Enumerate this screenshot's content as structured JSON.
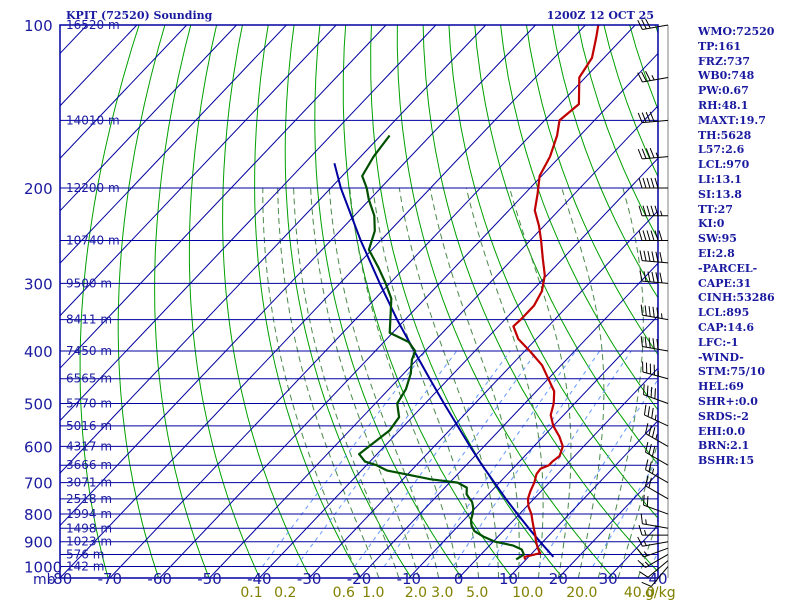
{
  "header": {
    "station": "KPIT (72520) Sounding",
    "time": "1200Z 12 OCT 25"
  },
  "indices": [
    "WMO:72520",
    "TP:161",
    "FRZ:737",
    "WB0:748",
    "PW:0.67",
    "RH:48.1",
    "MAXT:19.7",
    "TH:5628",
    "L57:2.6",
    "LCL:970",
    "LI:13.1",
    "SI:13.8",
    "TT:27",
    "KI:0",
    "SW:95",
    "EI:2.8",
    "-PARCEL-",
    "CAPE:31",
    "CINH:53286",
    "LCL:895",
    "CAP:14.6",
    "LFC:-1",
    "-WIND-",
    "STM:75/10",
    "HEL:69",
    "SHR+:0.0",
    "SRDS:-2",
    "EHI:0.0",
    "BRN:2.1",
    "BSHR:15"
  ],
  "colors": {
    "grid": "#0000a0",
    "dry_adiabat": "#00a000",
    "moist_adiabat": "#4a8a4a",
    "mixing_ratio": "#6699ff",
    "temperature": "#c00000",
    "dewpoint": "#005000",
    "parcel": "#0000a0",
    "label": "#1a1aa0",
    "mix_label": "#808000",
    "wind": "#000000"
  },
  "chart_data": {
    "type": "skew-t",
    "pressure_axis": {
      "unit_label": "mb",
      "ticks": [
        "100",
        "200",
        "300",
        "400",
        "500",
        "600",
        "700",
        "800",
        "900",
        "1000"
      ],
      "ylim": [
        1050,
        100
      ]
    },
    "temperature_axis": {
      "ticks": [
        "-80",
        "-70",
        "-60",
        "-50",
        "-40",
        "-30",
        "-20",
        "-10",
        "0",
        "10",
        "20",
        "30",
        "40"
      ],
      "xlim": [
        -80,
        40
      ]
    },
    "height_labels": [
      {
        "p": 100,
        "text": "16520 m"
      },
      {
        "p": 150,
        "text": "14010 m"
      },
      {
        "p": 200,
        "text": "12200 m"
      },
      {
        "p": 250,
        "text": "10740 m"
      },
      {
        "p": 300,
        "text": "9500 m"
      },
      {
        "p": 350,
        "text": "8411 m"
      },
      {
        "p": 400,
        "text": "7450 m"
      },
      {
        "p": 450,
        "text": "6565 m"
      },
      {
        "p": 500,
        "text": "5770 m"
      },
      {
        "p": 550,
        "text": "5016 m"
      },
      {
        "p": 600,
        "text": "4317 m"
      },
      {
        "p": 650,
        "text": "3666 m"
      },
      {
        "p": 700,
        "text": "3071 m"
      },
      {
        "p": 750,
        "text": "2518 m"
      },
      {
        "p": 800,
        "text": "1994 m"
      },
      {
        "p": 850,
        "text": "1498 m"
      },
      {
        "p": 900,
        "text": "1023 m"
      },
      {
        "p": 950,
        "text": "576 m"
      },
      {
        "p": 1000,
        "text": "142 m"
      }
    ],
    "mixing_ratio_labels": [
      "0.1",
      "0.2",
      "0.6",
      "1.0",
      "2.0",
      "3.0",
      "5.0",
      "10.0",
      "20.0",
      "40.0"
    ],
    "mixing_ratio_unit": "g/kg",
    "series": [
      {
        "key": "temperature",
        "points": [
          [
            970,
            9.8
          ],
          [
            960,
            9.2
          ],
          [
            945,
            11.6
          ],
          [
            925,
            10.2
          ],
          [
            900,
            8.6
          ],
          [
            875,
            7.2
          ],
          [
            850,
            5.6
          ],
          [
            825,
            4.0
          ],
          [
            800,
            2.4
          ],
          [
            775,
            0.4
          ],
          [
            750,
            -1.2
          ],
          [
            725,
            -2.2
          ],
          [
            700,
            -3.0
          ],
          [
            675,
            -4.2
          ],
          [
            660,
            -4.4
          ],
          [
            650,
            -3.4
          ],
          [
            640,
            -3.4
          ],
          [
            625,
            -3.0
          ],
          [
            600,
            -4.2
          ],
          [
            575,
            -6.8
          ],
          [
            550,
            -10.0
          ],
          [
            525,
            -12.6
          ],
          [
            500,
            -14.2
          ],
          [
            475,
            -16.4
          ],
          [
            450,
            -20.0
          ],
          [
            425,
            -23.8
          ],
          [
            400,
            -29.0
          ],
          [
            380,
            -33.6
          ],
          [
            360,
            -37.0
          ],
          [
            350,
            -36.8
          ],
          [
            330,
            -36.8
          ],
          [
            310,
            -38.0
          ],
          [
            290,
            -40.4
          ],
          [
            270,
            -44.0
          ],
          [
            250,
            -47.8
          ],
          [
            235,
            -51.0
          ],
          [
            220,
            -54.8
          ],
          [
            205,
            -57.4
          ],
          [
            190,
            -60.4
          ],
          [
            175,
            -62.0
          ],
          [
            160,
            -64.6
          ],
          [
            150,
            -67.0
          ],
          [
            140,
            -66.2
          ],
          [
            125,
            -71.2
          ],
          [
            115,
            -72.4
          ],
          [
            105,
            -75.6
          ],
          [
            100,
            -77.4
          ]
        ]
      },
      {
        "key": "dewpoint",
        "points": [
          [
            970,
            8.0
          ],
          [
            950,
            8.6
          ],
          [
            930,
            7.2
          ],
          [
            915,
            4.8
          ],
          [
            900,
            0.4
          ],
          [
            880,
            -3.0
          ],
          [
            860,
            -5.8
          ],
          [
            840,
            -7.4
          ],
          [
            820,
            -8.6
          ],
          [
            800,
            -9.4
          ],
          [
            780,
            -10.4
          ],
          [
            760,
            -11.8
          ],
          [
            745,
            -13.4
          ],
          [
            735,
            -14.4
          ],
          [
            715,
            -15.6
          ],
          [
            700,
            -18.4
          ],
          [
            690,
            -24.4
          ],
          [
            675,
            -30.6
          ],
          [
            665,
            -34.8
          ],
          [
            650,
            -38.0
          ],
          [
            640,
            -41.0
          ],
          [
            620,
            -43.6
          ],
          [
            590,
            -42.8
          ],
          [
            560,
            -42.0
          ],
          [
            530,
            -42.6
          ],
          [
            500,
            -45.6
          ],
          [
            470,
            -46.6
          ],
          [
            440,
            -48.6
          ],
          [
            415,
            -51.0
          ],
          [
            400,
            -52.0
          ],
          [
            385,
            -55.0
          ],
          [
            370,
            -60.6
          ],
          [
            340,
            -64.2
          ],
          [
            320,
            -66.8
          ],
          [
            300,
            -70.8
          ],
          [
            280,
            -75.4
          ],
          [
            260,
            -80.6
          ],
          [
            240,
            -83.0
          ],
          [
            225,
            -86.0
          ],
          [
            210,
            -90.2
          ],
          [
            200,
            -92.8
          ],
          [
            190,
            -96.0
          ],
          [
            175,
            -97.4
          ],
          [
            160,
            -98.2
          ]
        ]
      },
      {
        "key": "parcel",
        "points": [
          [
            960,
            15.0
          ],
          [
            900,
            9.4
          ],
          [
            850,
            4.6
          ],
          [
            800,
            -0.4
          ],
          [
            750,
            -5.6
          ],
          [
            700,
            -11.0
          ],
          [
            650,
            -16.8
          ],
          [
            600,
            -22.8
          ],
          [
            550,
            -29.2
          ],
          [
            500,
            -36.2
          ],
          [
            450,
            -43.8
          ],
          [
            400,
            -52.2
          ],
          [
            350,
            -61.6
          ],
          [
            300,
            -72.0
          ],
          [
            250,
            -84.0
          ],
          [
            200,
            -98.0
          ],
          [
            180,
            -104.0
          ]
        ]
      }
    ],
    "wind_profile": [
      {
        "p": 1000,
        "dir": 220,
        "spd": 10
      },
      {
        "p": 975,
        "dir": 230,
        "spd": 10
      },
      {
        "p": 950,
        "dir": 240,
        "spd": 15
      },
      {
        "p": 925,
        "dir": 250,
        "spd": 15
      },
      {
        "p": 900,
        "dir": 260,
        "spd": 15
      },
      {
        "p": 875,
        "dir": 270,
        "spd": 15
      },
      {
        "p": 850,
        "dir": 280,
        "spd": 15
      },
      {
        "p": 800,
        "dir": 290,
        "spd": 20
      },
      {
        "p": 750,
        "dir": 300,
        "spd": 20
      },
      {
        "p": 700,
        "dir": 300,
        "spd": 25
      },
      {
        "p": 650,
        "dir": 300,
        "spd": 30
      },
      {
        "p": 600,
        "dir": 300,
        "spd": 35
      },
      {
        "p": 550,
        "dir": 295,
        "spd": 35
      },
      {
        "p": 500,
        "dir": 290,
        "spd": 40
      },
      {
        "p": 450,
        "dir": 285,
        "spd": 45
      },
      {
        "p": 400,
        "dir": 280,
        "spd": 50
      },
      {
        "p": 350,
        "dir": 280,
        "spd": 55
      },
      {
        "p": 300,
        "dir": 275,
        "spd": 60
      },
      {
        "p": 275,
        "dir": 275,
        "spd": 60
      },
      {
        "p": 250,
        "dir": 270,
        "spd": 60
      },
      {
        "p": 225,
        "dir": 270,
        "spd": 55
      },
      {
        "p": 200,
        "dir": 270,
        "spd": 50
      },
      {
        "p": 175,
        "dir": 265,
        "spd": 45
      },
      {
        "p": 150,
        "dir": 265,
        "spd": 40
      },
      {
        "p": 125,
        "dir": 260,
        "spd": 35
      },
      {
        "p": 100,
        "dir": 260,
        "spd": 30
      }
    ]
  }
}
